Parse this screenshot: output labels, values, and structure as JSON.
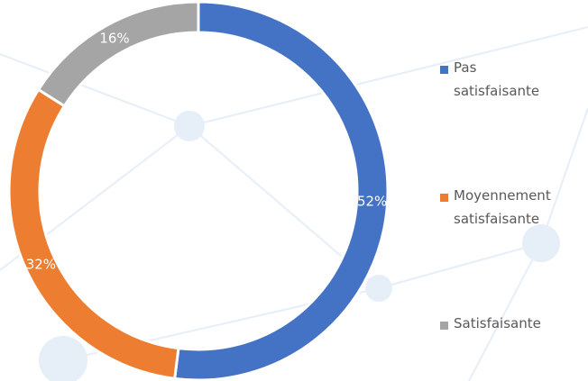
{
  "chart_data": {
    "type": "donut",
    "categories": [
      "Pas satisfaisante",
      "Moyennement satisfaisante",
      "Satisfaisante"
    ],
    "values": [
      52,
      32,
      16
    ],
    "value_labels": [
      "52%",
      "32%",
      "16%"
    ],
    "colors": [
      "#4472c4",
      "#ed7d31",
      "#a5a5a5"
    ],
    "legend": "right"
  }
}
